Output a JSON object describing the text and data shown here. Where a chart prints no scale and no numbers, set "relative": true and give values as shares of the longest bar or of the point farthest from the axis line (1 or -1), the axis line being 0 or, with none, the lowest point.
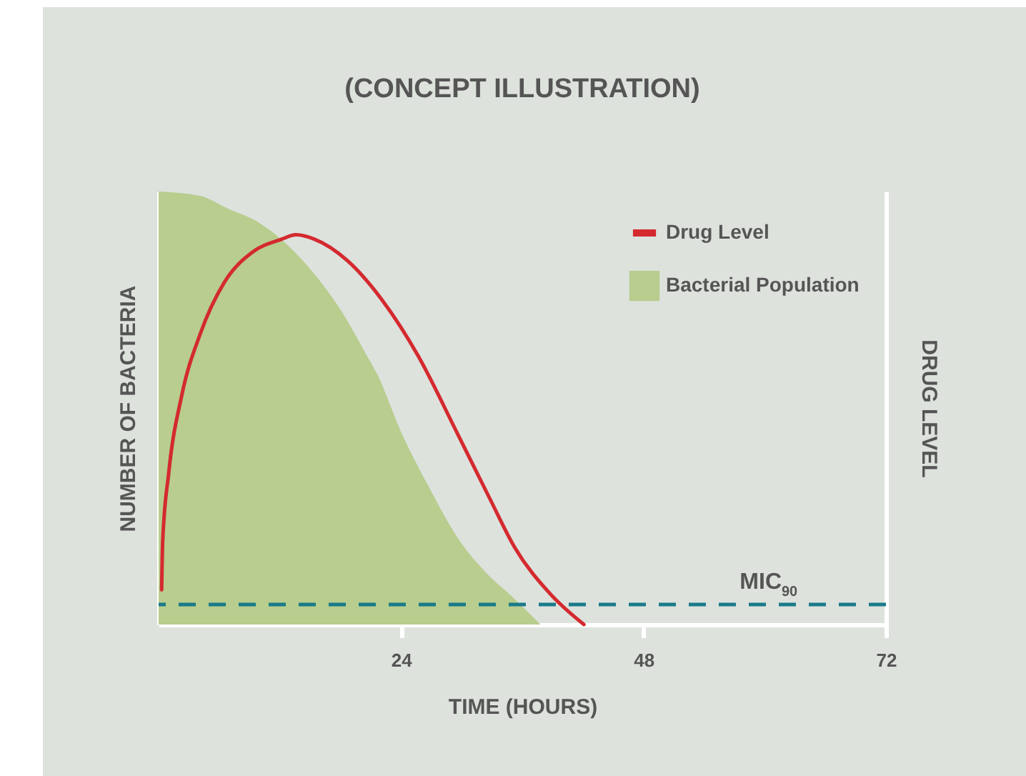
{
  "chart_data": {
    "type": "area",
    "title": "(CONCEPT ILLUSTRATION)",
    "xlabel": "TIME (HOURS)",
    "ylabel": "NUMBER OF BACTERIA",
    "y2label": "DRUG LEVEL",
    "relative": true,
    "xlim": [
      0,
      72
    ],
    "xticks": [
      24,
      48,
      72
    ],
    "legend": "top right",
    "series": [
      {
        "name": "Drug Level",
        "type": "line",
        "color": "#d42a2f",
        "x": [
          0.3,
          0.4,
          1.0,
          2.3,
          4.1,
          6.5,
          9.3,
          12.2,
          13.6,
          15.4,
          18.7,
          22.1,
          25.7,
          29.6,
          32.8,
          35.2,
          38.8,
          42.1
        ],
        "values": [
          0.08,
          0.19,
          0.35,
          0.53,
          0.67,
          0.79,
          0.86,
          0.89,
          0.9,
          0.89,
          0.84,
          0.75,
          0.62,
          0.44,
          0.29,
          0.18,
          0.07,
          0
        ]
      },
      {
        "name": "Bacterial Population",
        "color": "#b8cd8e",
        "x": [
          0,
          4.1,
          6.9,
          9.8,
          12.6,
          15.4,
          18.2,
          20.4,
          21.8,
          23.9,
          26.7,
          29.6,
          32.4,
          35.2,
          37.8
        ],
        "values": [
          1,
          0.99,
          0.96,
          0.93,
          0.88,
          0.81,
          0.72,
          0.63,
          0.57,
          0.45,
          0.32,
          0.2,
          0.12,
          0.06,
          0
        ]
      }
    ],
    "ref_lines": [
      {
        "axis": "y",
        "value": 0.046,
        "label": "MIC$_{90}$",
        "color": "#1a7a8a",
        "line_style": "dashed"
      }
    ]
  }
}
